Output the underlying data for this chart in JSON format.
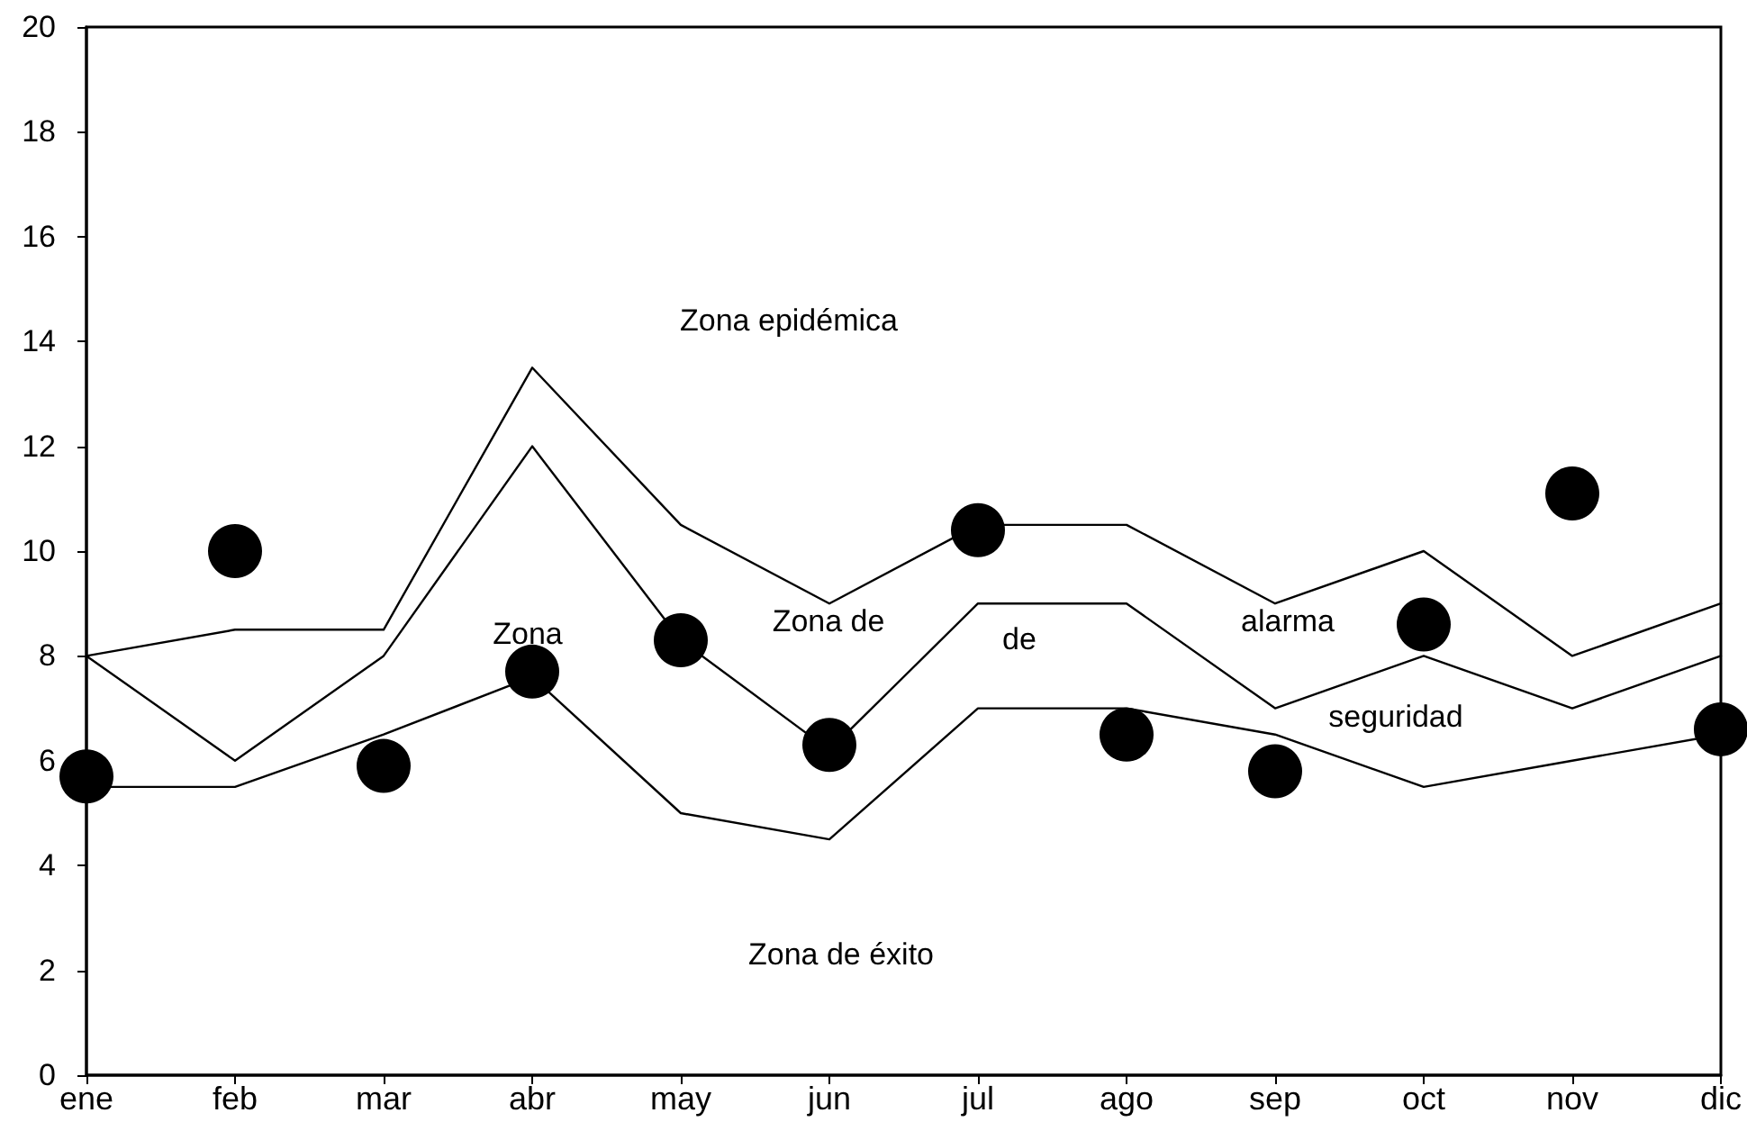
{
  "chart_data": {
    "type": "line",
    "categories": [
      "ene",
      "feb",
      "mar",
      "abr",
      "may",
      "jun",
      "jul",
      "ago",
      "sep",
      "oct",
      "nov",
      "dic"
    ],
    "series": [
      {
        "color": "#000000",
        "values": [
          8,
          8.5,
          8.5,
          13.5,
          10.5,
          9,
          10.5,
          10.5,
          9,
          10,
          8,
          9
        ]
      },
      {
        "color": "#000000",
        "values": [
          8,
          6,
          8,
          12,
          8.3,
          6.2,
          9,
          9,
          7,
          8,
          7,
          8
        ]
      },
      {
        "color": "#000000",
        "values": [
          5.5,
          5.5,
          6.5,
          7.6,
          5,
          4.5,
          7,
          7,
          6.5,
          5.5,
          6,
          6.5
        ]
      },
      {
        "type": "scatter",
        "marker": "circle",
        "color": "#000000",
        "values": [
          5.7,
          10,
          5.9,
          7.7,
          8.3,
          6.3,
          10.4,
          6.5,
          5.8,
          8.6,
          11.1,
          6.6
        ]
      }
    ],
    "marker": "none",
    "line_style": "solid",
    "ylim": [
      0,
      20
    ],
    "yticks": [
      0,
      2,
      4,
      6,
      8,
      10,
      12,
      14,
      16,
      18,
      20
    ],
    "grid": false,
    "annotations": [
      "Zona epidémica",
      "Zona",
      "Zona de",
      "de",
      "alarma",
      "seguridad",
      "Zona de éxito"
    ]
  }
}
